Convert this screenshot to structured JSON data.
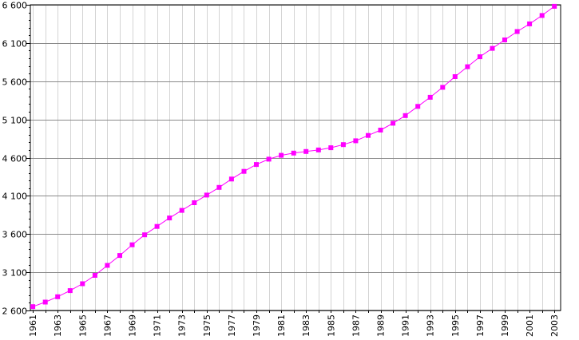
{
  "chart_data": {
    "type": "line",
    "title": "",
    "xlabel": "",
    "ylabel": "",
    "x": [
      1961,
      1962,
      1963,
      1964,
      1965,
      1966,
      1967,
      1968,
      1969,
      1970,
      1971,
      1972,
      1973,
      1974,
      1975,
      1976,
      1977,
      1978,
      1979,
      1980,
      1981,
      1982,
      1983,
      1984,
      1985,
      1986,
      1987,
      1988,
      1989,
      1990,
      1991,
      1992,
      1993,
      1994,
      1995,
      1996,
      1997,
      1998,
      1999,
      2000,
      2001,
      2002,
      2003
    ],
    "series": [
      {
        "values": [
          2650,
          2710,
          2780,
          2860,
          2950,
          3060,
          3190,
          3320,
          3460,
          3590,
          3700,
          3810,
          3910,
          4010,
          4110,
          4210,
          4320,
          4420,
          4510,
          4580,
          4630,
          4660,
          4680,
          4700,
          4730,
          4770,
          4820,
          4890,
          4960,
          5050,
          5150,
          5270,
          5390,
          5520,
          5660,
          5790,
          5920,
          6030,
          6140,
          6250,
          6350,
          6460,
          6580
        ],
        "color": "#ff00ff"
      }
    ],
    "xlim": [
      1960.8,
      2003.5
    ],
    "ylim": [
      2600,
      6600
    ],
    "x_tick_labels": [
      "1961",
      "1963",
      "1965",
      "1967",
      "1969",
      "1971",
      "1973",
      "1975",
      "1977",
      "1979",
      "1981",
      "1983",
      "1985",
      "1987",
      "1989",
      "1991",
      "1993",
      "1995",
      "1997",
      "1999",
      "2001",
      "2003"
    ],
    "y_tick_labels": [
      "2 600",
      "3 100",
      "3 600",
      "4 100",
      "4 600",
      "5 100",
      "5 600",
      "6 100",
      "6 600"
    ],
    "grid": true,
    "legend": "none"
  }
}
